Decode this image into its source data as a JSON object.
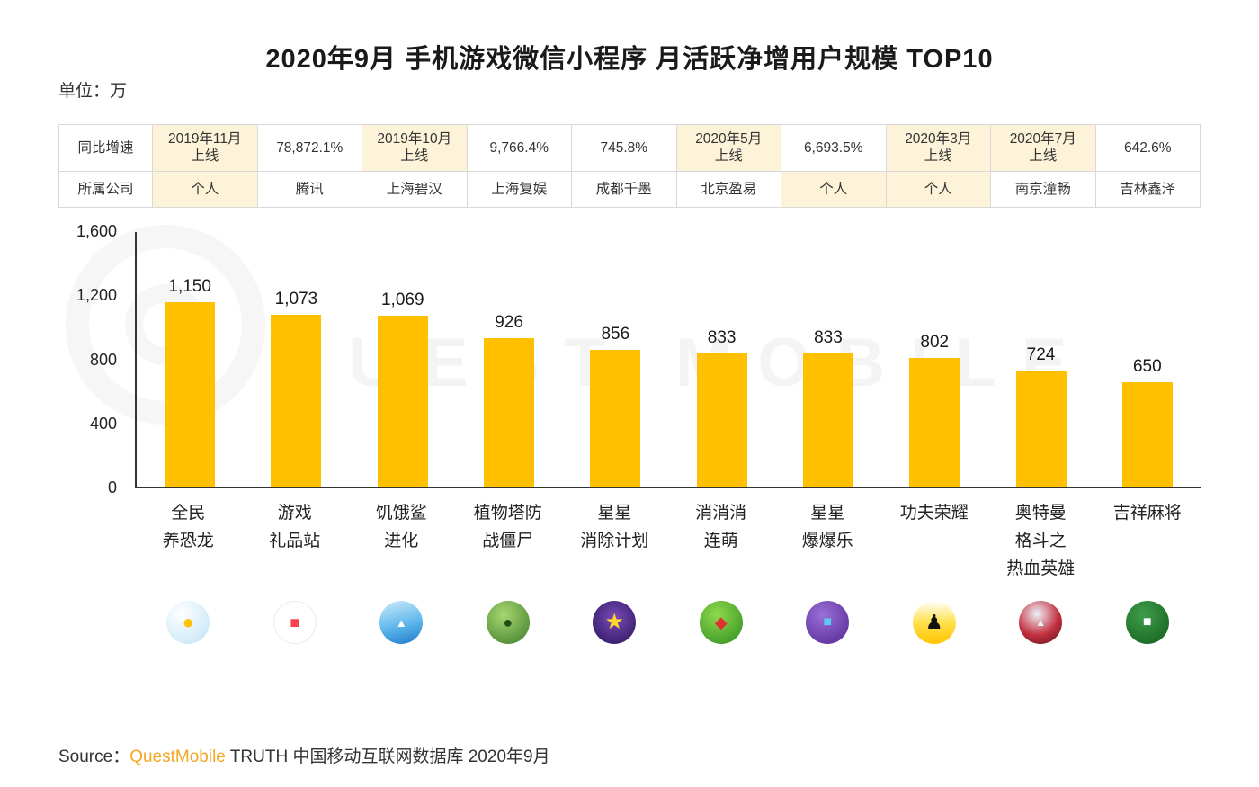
{
  "title": "2020年9月 手机游戏微信小程序 月活跃净增用户规模 TOP10",
  "unit_label": "单位：万",
  "comparison_table": {
    "row_headers": [
      "同比增速",
      "所属公司"
    ],
    "growth_row": [
      "2019年11月\n上线",
      "78,872.1%",
      "2019年10月\n上线",
      "9,766.4%",
      "745.8%",
      "2020年5月\n上线",
      "6,693.5%",
      "2020年3月\n上线",
      "2020年7月\n上线",
      "642.6%"
    ],
    "company_row": [
      "个人",
      "腾讯",
      "上海碧汉",
      "上海复娱",
      "成都千墨",
      "北京盈易",
      "个人",
      "个人",
      "南京潼畅",
      "吉林鑫泽"
    ],
    "highlight_color": "#fcf3d8"
  },
  "chart_data": {
    "type": "bar",
    "title": "2020年9月 手机游戏微信小程序 月活跃净增用户规模 TOP10",
    "unit": "万",
    "categories": [
      "全民养恐龙",
      "游戏礼品站",
      "饥饿鲨进化",
      "植物塔防战僵尸",
      "星星消除计划",
      "消消消连萌",
      "星星爆爆乐",
      "功夫荣耀",
      "奥特曼格斗之热血英雄",
      "吉祥麻将"
    ],
    "category_lines": [
      [
        "全民",
        "养恐龙"
      ],
      [
        "游戏",
        "礼品站"
      ],
      [
        "饥饿鲨",
        "进化"
      ],
      [
        "植物塔防",
        "战僵尸"
      ],
      [
        "星星",
        "消除计划"
      ],
      [
        "消消消",
        "连萌"
      ],
      [
        "星星",
        "爆爆乐"
      ],
      [
        "功夫荣耀"
      ],
      [
        "奥特曼",
        "格斗之",
        "热血英雄"
      ],
      [
        "吉祥麻将"
      ]
    ],
    "values": [
      1150,
      1073,
      1069,
      926,
      856,
      833,
      833,
      802,
      724,
      650
    ],
    "value_labels": [
      "1,150",
      "1,073",
      "1,069",
      "926",
      "856",
      "833",
      "833",
      "802",
      "724",
      "650"
    ],
    "xlabel": "",
    "ylabel": "",
    "ylim": [
      0,
      1600
    ],
    "ytick_values": [
      1600,
      1200,
      800,
      400,
      0
    ],
    "ytick_labels": [
      "1,600",
      "1,200",
      "800",
      "400",
      "0"
    ],
    "bar_color": "#FFC000",
    "grid": false,
    "legend": false
  },
  "icons": [
    {
      "name": "dino-game-icon",
      "bg": "radial-gradient(circle at 35% 30%, #ffffff, #bfe2f6)",
      "glyph": "●",
      "glyph_color": "#ffc107",
      "glyph_size": 22
    },
    {
      "name": "gift-shop-icon",
      "bg": "#ffffff",
      "border": "1px solid #ececec",
      "glyph": "■",
      "glyph_color": "#f5424d",
      "glyph_size": 18
    },
    {
      "name": "shark-game-icon",
      "bg": "linear-gradient(165deg, #cdeafb 0%, #5fb8ec 55%, #1e79c9 100%)",
      "glyph": "▲",
      "glyph_color": "#ffffff",
      "glyph_size": 13
    },
    {
      "name": "pvz-game-icon",
      "bg": "radial-gradient(circle at 40% 32%, #a8d870, #3c7a2a)",
      "glyph": "●",
      "glyph_color": "#1f4f16",
      "glyph_size": 18
    },
    {
      "name": "star-eliminate-icon",
      "bg": "radial-gradient(circle at 50% 40%, #7a4cb8, #27135a)",
      "glyph": "★",
      "glyph_color": "#ffd82e",
      "glyph_size": 24
    },
    {
      "name": "dice-match-icon",
      "bg": "radial-gradient(circle at 40% 32%, #8fd94c, #2f8d1f)",
      "glyph": "◆",
      "glyph_color": "#e03131",
      "glyph_size": 18
    },
    {
      "name": "star-blocks-icon",
      "bg": "radial-gradient(circle at 40% 32%, #9a6fd8, #54278f)",
      "glyph": "■",
      "glyph_color": "#5bc8f5",
      "glyph_size": 16
    },
    {
      "name": "kungfu-game-icon",
      "bg": "linear-gradient(180deg, #ffffff 0%, #ffe14d 50%, #ffc400 100%)",
      "glyph": "♟",
      "glyph_color": "#111111",
      "glyph_size": 22
    },
    {
      "name": "ultraman-game-icon",
      "bg": "radial-gradient(circle at 42% 30%, #eef3f8 0%, #c23040 55%, #5a1019 100%)",
      "glyph": "▲",
      "glyph_color": "#e8eff6",
      "glyph_size": 12
    },
    {
      "name": "mahjong-game-icon",
      "bg": "radial-gradient(circle at 40% 32%, #3f9e4a, #135c1d)",
      "glyph": "■",
      "glyph_color": "#ffffff",
      "glyph_size": 16
    }
  ],
  "watermark": {
    "text": "QUEST MOBILE"
  },
  "source": {
    "prefix": "Source：",
    "brand": "QuestMobile",
    "rest": " TRUTH 中国移动互联网数据库 2020年9月",
    "brand_color": "#f5a623"
  }
}
